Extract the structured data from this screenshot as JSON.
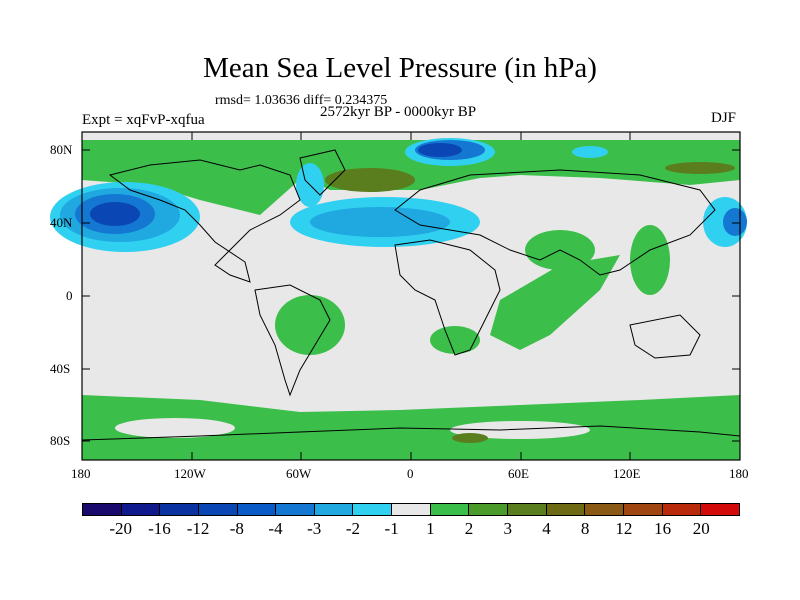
{
  "title": "Mean Sea Level Pressure (in hPa)",
  "stats": "rmsd= 1.03636 diff= 0.234375",
  "experiment": "Expt = xqFvP-xqfua",
  "period": "2572kyr BP - 0000kyr BP",
  "season": "DJF",
  "lat_ticks": [
    "80N",
    "40N",
    "0",
    "40S",
    "80S"
  ],
  "lon_ticks": [
    "180",
    "120W",
    "60W",
    "0",
    "60E",
    "120E",
    "180"
  ],
  "colorbar": {
    "colors": [
      "#1a0a6e",
      "#101a8c",
      "#0a32a0",
      "#0a46b4",
      "#0a5ac8",
      "#1478d2",
      "#20a8e0",
      "#30d0f0",
      "#e8e8e8",
      "#3cbe4a",
      "#4b9b2a",
      "#5a7d1e",
      "#6e6a14",
      "#8a5a14",
      "#a04610",
      "#b82a0a",
      "#d20a0a"
    ],
    "labels": [
      "-20",
      "-16",
      "-12",
      "-8",
      "-4",
      "-3",
      "-2",
      "-1",
      "1",
      "2",
      "3",
      "4",
      "8",
      "12",
      "16",
      "20"
    ]
  }
}
